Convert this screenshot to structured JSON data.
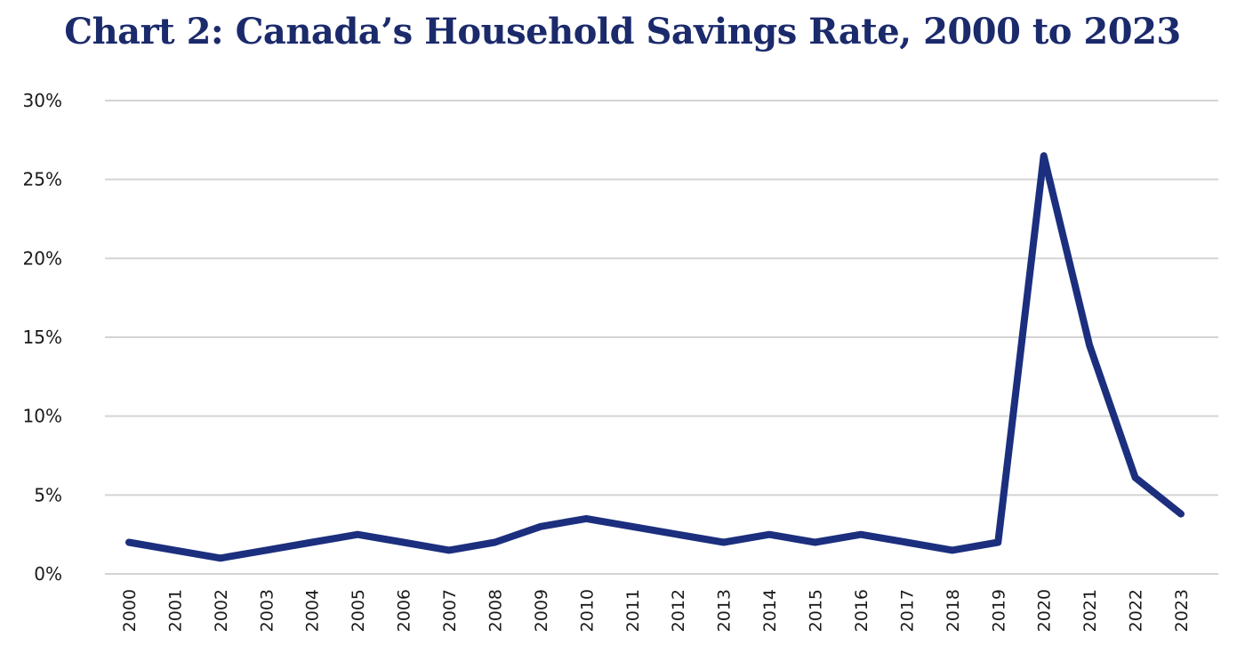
{
  "chart_data": {
    "type": "line",
    "title": "Chart 2: Canada’s Household Savings Rate, 2000 to 2023",
    "xlabel": "",
    "ylabel": "",
    "categories": [
      "2000",
      "2001",
      "2002",
      "2003",
      "2004",
      "2005",
      "2006",
      "2007",
      "2008",
      "2009",
      "2010",
      "2011",
      "2012",
      "2013",
      "2014",
      "2015",
      "2016",
      "2017",
      "2018",
      "2019",
      "2020",
      "2021",
      "2022",
      "2023"
    ],
    "series": [
      {
        "values": [
          2.0,
          1.5,
          1.0,
          1.5,
          2.0,
          2.5,
          2.0,
          1.5,
          2.0,
          3.0,
          3.5,
          3.0,
          2.5,
          2.0,
          2.5,
          2.0,
          2.5,
          2.0,
          1.5,
          2.0,
          26.5,
          14.5,
          6.1,
          3.8
        ],
        "color": "#1b2f7e"
      }
    ],
    "ylim": [
      0,
      30
    ],
    "yticks": [
      0,
      5,
      10,
      15,
      20,
      25,
      30
    ],
    "ytick_labels": [
      "0%",
      "5%",
      "10%",
      "15%",
      "20%",
      "25%",
      "30%"
    ],
    "grid": true,
    "legend": "none"
  },
  "colors": {
    "title": "#1b2a6b",
    "grid": "#d4d4d4",
    "tick_text": "#1a1a1a"
  }
}
